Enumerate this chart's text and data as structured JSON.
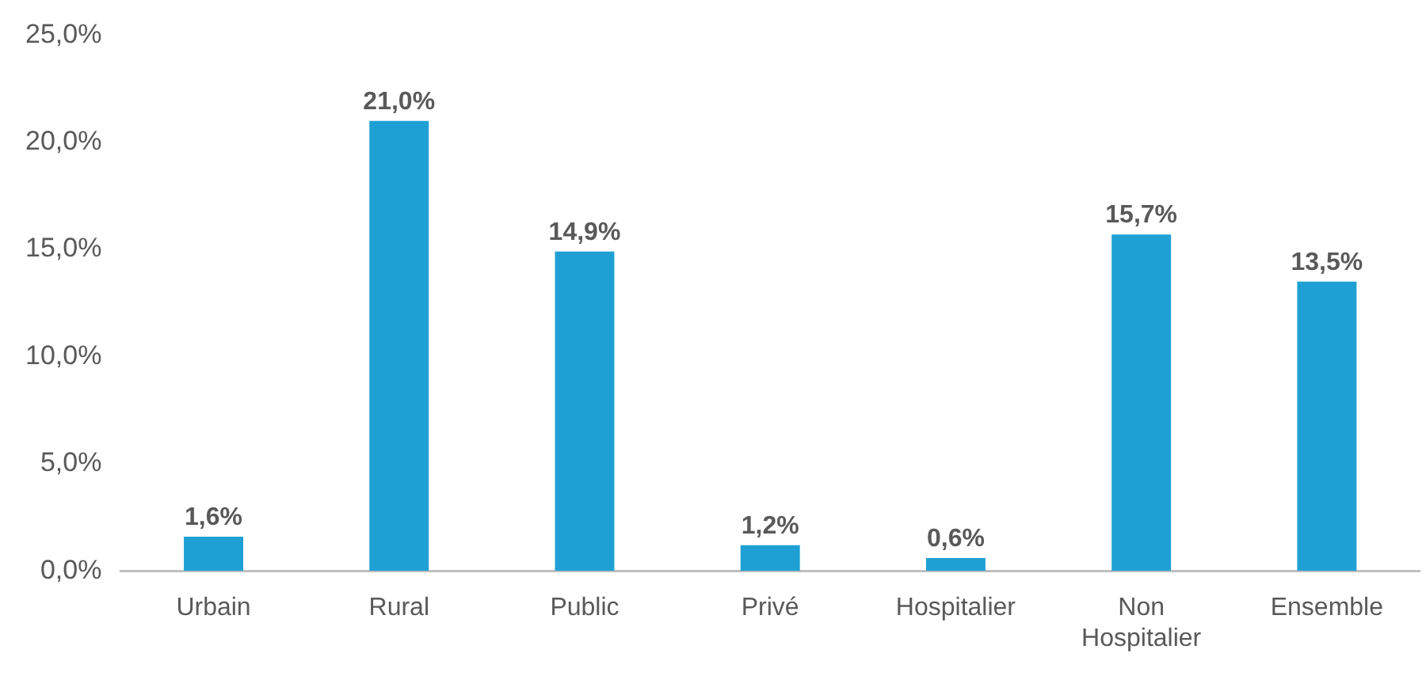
{
  "chart_data": {
    "type": "bar",
    "categories": [
      "Urbain",
      "Rural",
      "Public",
      "Privé",
      "Hospitalier",
      "Non Hospitalier",
      "Ensemble"
    ],
    "values": [
      1.6,
      21.0,
      14.9,
      1.2,
      0.6,
      15.7,
      13.5
    ],
    "value_labels": [
      "1,6%",
      "21,0%",
      "14,9%",
      "1,2%",
      "0,6%",
      "15,7%",
      "13,5%"
    ],
    "color": "#1fa0d4",
    "ylim": [
      0,
      25
    ],
    "yticks": [
      {
        "value": 0,
        "label": "0,0%"
      },
      {
        "value": 5,
        "label": "5,0%"
      },
      {
        "value": 10,
        "label": "10,0%"
      },
      {
        "value": 15,
        "label": "15,0%"
      },
      {
        "value": 20,
        "label": "20,0%"
      },
      {
        "value": 25,
        "label": "25,0%"
      }
    ],
    "grid": false,
    "legend": false
  }
}
